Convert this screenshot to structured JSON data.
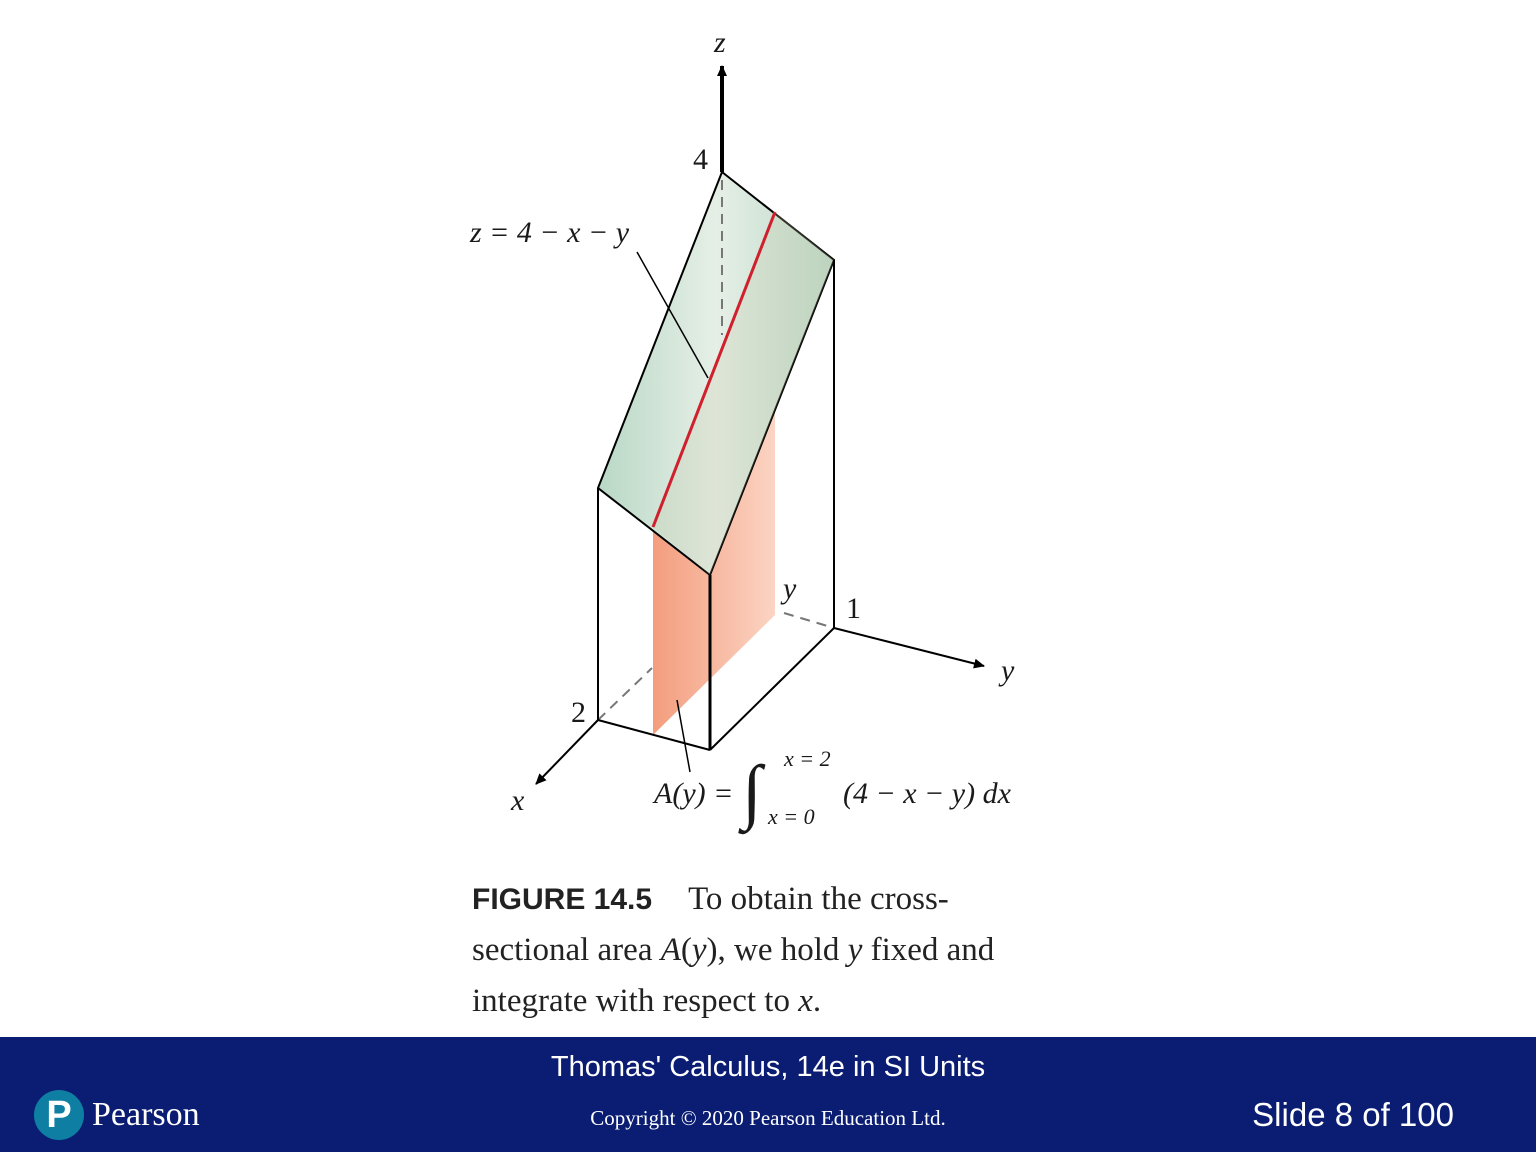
{
  "figure": {
    "axis_labels": {
      "z": "z",
      "y": "y",
      "x": "x"
    },
    "tick_labels": {
      "z": "4",
      "y": "1",
      "x": "2"
    },
    "cut_label": "y",
    "plane_label": "z = 4 − x − y",
    "area_formula": {
      "lhs": "A(y) =",
      "upper_limit": "x = 2",
      "lower_limit": "x = 0",
      "integrand": "(4 − x − y) dx"
    },
    "colors": {
      "plane": "#cfe3d6",
      "section": "#f08a66",
      "trace": "#d0202e",
      "edges": "#000000"
    }
  },
  "caption": {
    "label": "FIGURE 14.5",
    "line1": "To obtain the cross-",
    "line2_a": "sectional area ",
    "line2_A": "A",
    "line2_b": "(",
    "line2_y": "y",
    "line2_c": "), we hold ",
    "line2_y2": "y",
    "line2_d": " fixed and",
    "line3_a": "integrate with respect to ",
    "line3_x": "x",
    "line3_b": "."
  },
  "footer": {
    "book_title": "Thomas' Calculus, 14e in SI Units",
    "copyright": "Copyright © 2020 Pearson Education Ltd.",
    "slide_counter": "Slide 8 of 100",
    "logo_letter": "P",
    "logo_text": "Pearson"
  }
}
